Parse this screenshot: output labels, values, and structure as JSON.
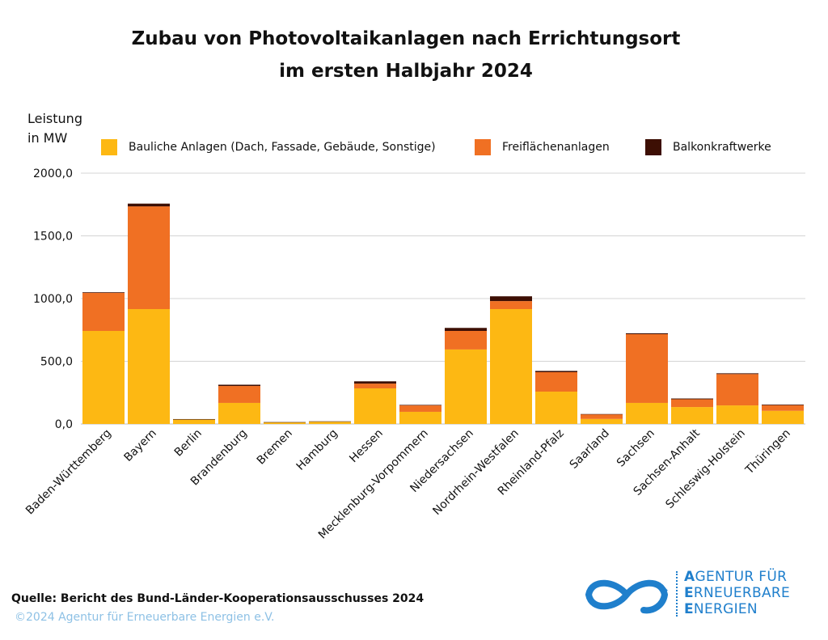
{
  "chart_data": {
    "type": "bar",
    "stacked": true,
    "title": "Zubau von Photovoltaikanlagen nach Errichtungsort im ersten Halbjahr 2024",
    "title_lines": [
      "Zubau von Photovoltaikanlagen nach Errichtungsort",
      "im ersten Halbjahr 2024"
    ],
    "xlabel": "",
    "ylabel": "Leistung in MW",
    "ylabel_lines": [
      "Leistung",
      "in MW"
    ],
    "ylim": [
      0,
      2000
    ],
    "yticks": [
      0,
      500,
      1000,
      1500,
      2000
    ],
    "ytick_labels": [
      "0,0",
      "500,0",
      "1000,0",
      "1500,0",
      "2000,0"
    ],
    "grid": true,
    "legend_position": "top",
    "categories": [
      "Baden-Württemberg",
      "Bayern",
      "Berlin",
      "Brandenburg",
      "Bremen",
      "Hamburg",
      "Hessen",
      "Mecklenburg-Vorpommern",
      "Niedersachsen",
      "Nordrhein-Westfalen",
      "Rheinland-Pfalz",
      "Saarland",
      "Sachsen",
      "Sachsen-Anhalt",
      "Schleswig-Holstein",
      "Thüringen"
    ],
    "series": [
      {
        "name": "Bauliche Anlagen (Dach, Fassade, Gebäude, Sonstige)",
        "color": "#fdb813",
        "values": [
          742,
          916,
          35,
          168,
          13,
          18,
          284,
          97,
          594,
          916,
          258,
          40,
          168,
          135,
          148,
          105
        ]
      },
      {
        "name": "Freiflächenanlagen",
        "color": "#f07023",
        "values": [
          303,
          819,
          0,
          135,
          0,
          0,
          38,
          51,
          148,
          64,
          155,
          37,
          548,
          62,
          250,
          45
        ]
      },
      {
        "name": "Balkonkraftwerke",
        "color": "#3d0f04",
        "values": [
          5,
          22,
          4,
          10,
          2,
          3,
          18,
          4,
          24,
          38,
          10,
          2,
          7,
          6,
          6,
          5
        ]
      }
    ]
  },
  "footer": {
    "source": "Quelle: Bericht des Bund-Länder-Kooperationsausschusses 2024",
    "copyright": "©2024 Agentur für Erneuerbare Energien e.V."
  },
  "logo": {
    "icon": "infinity-icon",
    "line1_initial": "A",
    "line1_rest": "GENTUR FÜR",
    "line2_initial": "E",
    "line2_rest": "RNEUERBARE",
    "line3_initial": "E",
    "line3_rest": "NERGIEN"
  }
}
